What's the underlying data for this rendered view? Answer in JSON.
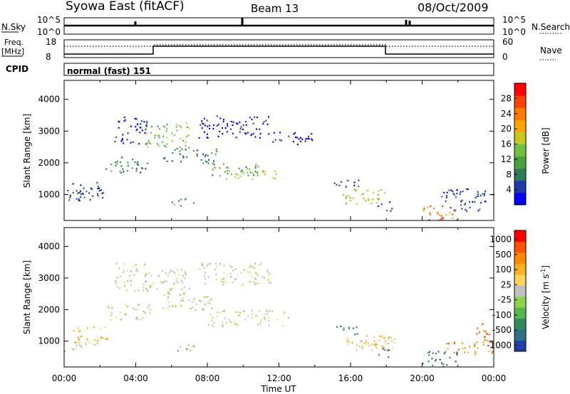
{
  "header": {
    "station": "Syowa East (fitACF)",
    "beam": "Beam 13",
    "date": "08/Oct/2009"
  },
  "top_panels": {
    "nsky_label": "N.Sky",
    "nsky_ticks": [
      "10^5",
      "10^0"
    ],
    "nsearch_label": "N.Search",
    "nsearch_ticks": [
      "10^5",
      "10^0"
    ],
    "freq_label": "Freq.",
    "freq_unit": "[MHz]",
    "freq_ticks": [
      "18",
      "8"
    ],
    "nave_label": "Nave",
    "nave_ticks": [
      "60",
      "0"
    ],
    "cpid_label": "CPID",
    "cpid_text": "normal (fast) 151"
  },
  "chart_data": [
    {
      "type": "heatmap",
      "name": "power",
      "ylabel": "Slant Range [km]",
      "ylim": [
        180,
        4600
      ],
      "yticks": [
        1000,
        2000,
        3000,
        4000
      ],
      "xlim": [
        0,
        24
      ],
      "colorbar": {
        "label": "Power [dB]",
        "ticks": [
          4,
          8,
          12,
          16,
          20,
          24,
          28
        ],
        "colors": [
          "#0000ff",
          "#1f3aa5",
          "#2e7d5a",
          "#46a33c",
          "#6fc03a",
          "#c8c81e",
          "#ffa500",
          "#ff7a00",
          "#ff4000",
          "#ff0000"
        ]
      },
      "blobs": [
        {
          "t0": 0.0,
          "t1": 1.0,
          "r0": 750,
          "r1": 1200,
          "level": 1
        },
        {
          "t0": 0.3,
          "t1": 2.2,
          "r0": 800,
          "r1": 1400,
          "level": 1
        },
        {
          "t0": 2.3,
          "t1": 4.8,
          "r0": 1700,
          "r1": 2200,
          "level": 2
        },
        {
          "t0": 2.8,
          "t1": 4.6,
          "r0": 2600,
          "r1": 3500,
          "level": 0
        },
        {
          "t0": 4.5,
          "t1": 7.0,
          "r0": 2500,
          "r1": 3300,
          "level": 4
        },
        {
          "t0": 5.5,
          "t1": 8.5,
          "r0": 2000,
          "r1": 2500,
          "level": 2
        },
        {
          "t0": 8.0,
          "t1": 11.0,
          "r0": 1600,
          "r1": 2000,
          "level": 3
        },
        {
          "t0": 9.0,
          "t1": 12.0,
          "r0": 1500,
          "r1": 1800,
          "level": 5
        },
        {
          "t0": 7.5,
          "t1": 11.5,
          "r0": 2800,
          "r1": 3500,
          "level": 0
        },
        {
          "t0": 11.5,
          "t1": 14.0,
          "r0": 2600,
          "r1": 3000,
          "level": 0
        },
        {
          "t0": 6.0,
          "t1": 7.3,
          "r0": 650,
          "r1": 900,
          "level": 3
        },
        {
          "t0": 15.0,
          "t1": 16.5,
          "r0": 1200,
          "r1": 1500,
          "level": 1
        },
        {
          "t0": 15.5,
          "t1": 18.0,
          "r0": 700,
          "r1": 1200,
          "level": 5
        },
        {
          "t0": 17.5,
          "t1": 18.3,
          "r0": 500,
          "r1": 800,
          "level": 1
        },
        {
          "t0": 20.0,
          "t1": 22.0,
          "r0": 200,
          "r1": 700,
          "level": 7
        },
        {
          "t0": 20.2,
          "t1": 21.2,
          "r0": 200,
          "r1": 350,
          "level": 9
        },
        {
          "t0": 21.0,
          "t1": 24.0,
          "r0": 500,
          "r1": 1200,
          "level": 1
        }
      ]
    },
    {
      "type": "heatmap",
      "name": "velocity",
      "ylabel": "Slant Range [km]",
      "ylim": [
        180,
        4600
      ],
      "yticks": [
        1000,
        2000,
        3000,
        4000
      ],
      "xlim": [
        0,
        24
      ],
      "xticks": [
        "00:00",
        "04:00",
        "08:00",
        "12:00",
        "16:00",
        "20:00",
        "00:00"
      ],
      "xlabel": "Time UT",
      "colorbar": {
        "label": "Velocity [m s",
        "label_sup": "-1",
        "label_close": "]",
        "ticks": [
          "1000",
          "500",
          "100",
          "25",
          "-25",
          "-100",
          "-500",
          "-1000"
        ],
        "colors": [
          "#1f3ea8",
          "#2e6f8a",
          "#2f8b5a",
          "#55b94a",
          "#8ed24a",
          "#c0c0c0",
          "#ffd25a",
          "#ffb020",
          "#ff8a00",
          "#ff5000",
          "#ff0000"
        ]
      },
      "blobs": [
        {
          "t0": 0.0,
          "t1": 1.5,
          "r0": 700,
          "r1": 1000,
          "level": 5
        },
        {
          "t0": 0.5,
          "t1": 2.5,
          "r0": 900,
          "r1": 1500,
          "level": 7
        },
        {
          "t0": 2.3,
          "t1": 4.8,
          "r0": 1700,
          "r1": 2200,
          "level": 5
        },
        {
          "t0": 2.8,
          "t1": 4.6,
          "r0": 2600,
          "r1": 3500,
          "level": 5
        },
        {
          "t0": 4.5,
          "t1": 7.0,
          "r0": 2500,
          "r1": 3300,
          "level": 5
        },
        {
          "t0": 5.5,
          "t1": 8.5,
          "r0": 2000,
          "r1": 2500,
          "level": 5
        },
        {
          "t0": 8.0,
          "t1": 12.5,
          "r0": 1500,
          "r1": 2000,
          "level": 5
        },
        {
          "t0": 7.5,
          "t1": 11.5,
          "r0": 2800,
          "r1": 3500,
          "level": 5
        },
        {
          "t0": 6.0,
          "t1": 7.3,
          "r0": 650,
          "r1": 900,
          "level": 4
        },
        {
          "t0": 15.0,
          "t1": 16.5,
          "r0": 1200,
          "r1": 1500,
          "level": 2
        },
        {
          "t0": 15.5,
          "t1": 18.5,
          "r0": 700,
          "r1": 1200,
          "level": 6
        },
        {
          "t0": 16.0,
          "t1": 18.0,
          "r0": 800,
          "r1": 1050,
          "level": 7
        },
        {
          "t0": 17.5,
          "t1": 18.3,
          "r0": 500,
          "r1": 800,
          "level": 1
        },
        {
          "t0": 20.0,
          "t1": 22.0,
          "r0": 200,
          "r1": 700,
          "level": 1
        },
        {
          "t0": 21.0,
          "t1": 24.0,
          "r0": 600,
          "r1": 1000,
          "level": 8
        },
        {
          "t0": 23.0,
          "t1": 24.0,
          "r0": 1000,
          "r1": 1600,
          "level": 9
        }
      ]
    }
  ]
}
